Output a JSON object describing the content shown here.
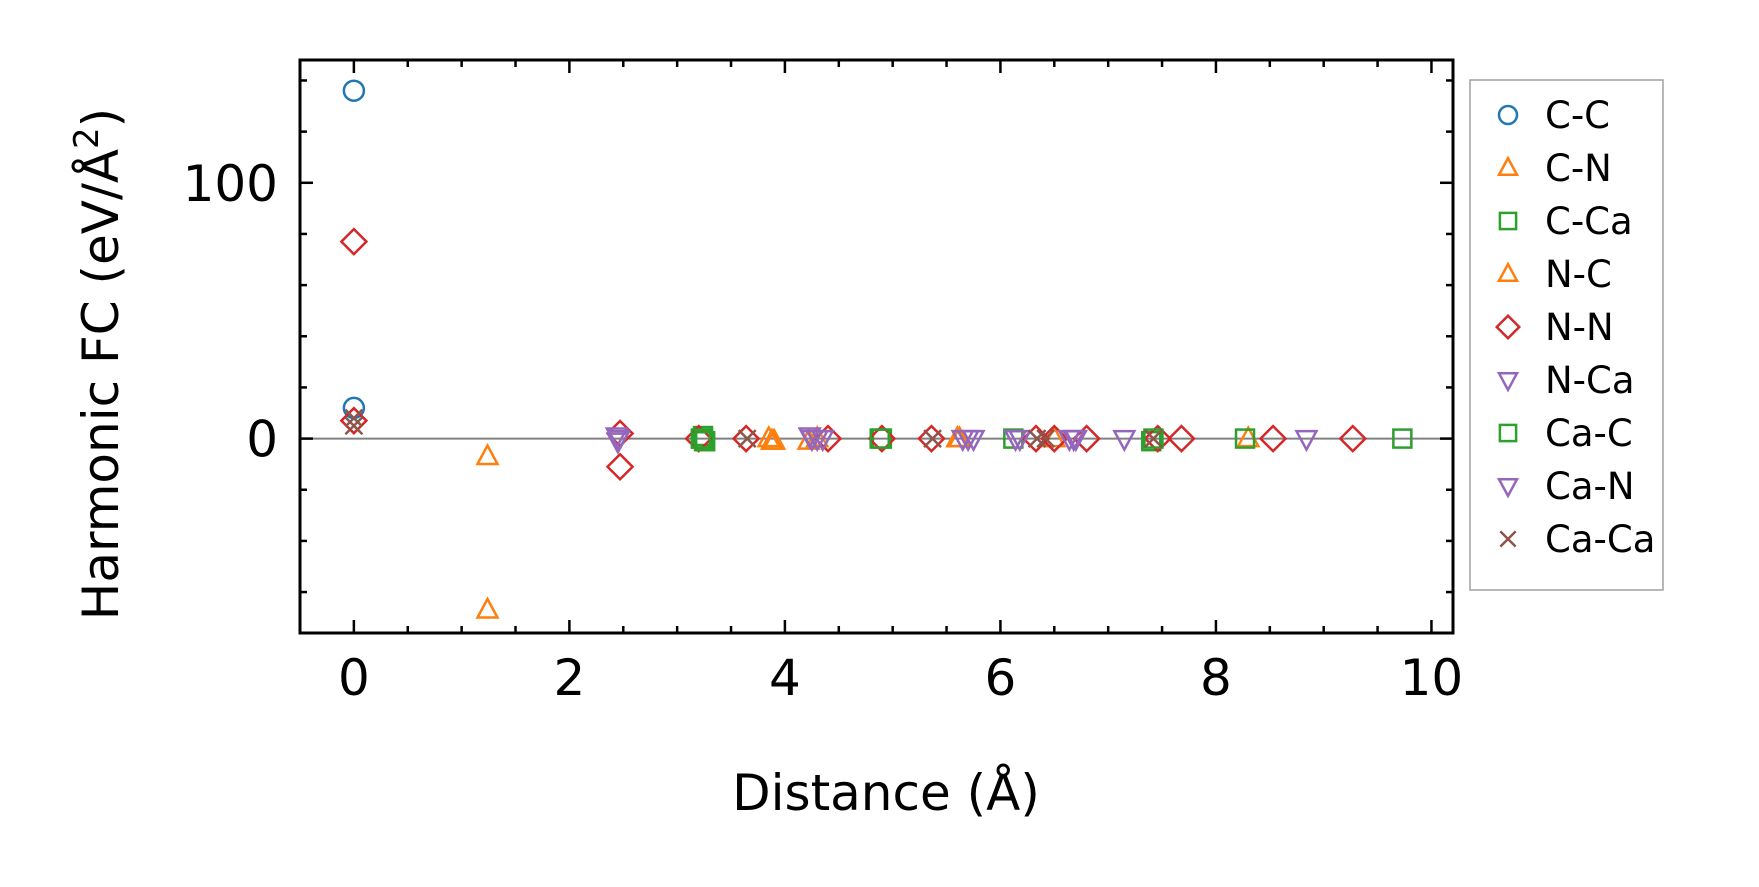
{
  "chart_data": {
    "type": "scatter",
    "title": "",
    "xlabel": "Distance (Å)",
    "ylabel_main": "Harmonic FC (eV/Å",
    "ylabel_sup": "2",
    "ylabel_close": ")",
    "xlim": [
      -0.5,
      10.2
    ],
    "ylim": [
      -76,
      148
    ],
    "x_ticks": [
      0,
      2,
      4,
      6,
      8,
      10
    ],
    "x_tick_labels": [
      "0",
      "2",
      "4",
      "6",
      "8",
      "10"
    ],
    "y_ticks": [
      0,
      100
    ],
    "y_tick_labels": [
      "0",
      "100"
    ],
    "x_minor_step": 0.5,
    "y_minor_step": 20,
    "zero_line": true,
    "grid": false,
    "legend_position": "outside-right",
    "series": [
      {
        "name": "C-C",
        "marker": "circle",
        "color": "#1f77b4",
        "points": [
          [
            0,
            136
          ],
          [
            0,
            12
          ]
        ]
      },
      {
        "name": "C-N",
        "marker": "triangle-up",
        "color": "#ff7f0e",
        "points": [
          [
            1.24,
            -7
          ],
          [
            1.24,
            -67
          ],
          [
            3.85,
            0
          ],
          [
            3.88,
            -1
          ],
          [
            4.22,
            -1
          ],
          [
            5.6,
            0
          ],
          [
            8.3,
            0
          ]
        ]
      },
      {
        "name": "C-Ca",
        "marker": "square",
        "color": "#2ca02c",
        "points": [
          [
            3.23,
            0
          ],
          [
            3.24,
            1
          ],
          [
            3.26,
            -1
          ],
          [
            4.9,
            0
          ],
          [
            6.12,
            0
          ],
          [
            7.4,
            -1
          ],
          [
            8.27,
            0
          ],
          [
            9.73,
            0
          ]
        ]
      },
      {
        "name": "N-C",
        "marker": "triangle-up",
        "color": "#ff7f0e",
        "points": [
          [
            3.9,
            -1
          ],
          [
            4.3,
            0
          ],
          [
            5.62,
            0
          ],
          [
            6.5,
            0
          ]
        ]
      },
      {
        "name": "N-N",
        "marker": "diamond",
        "color": "#d62728",
        "points": [
          [
            0,
            77
          ],
          [
            0,
            7
          ],
          [
            2.47,
            2
          ],
          [
            2.47,
            -11
          ],
          [
            3.2,
            0
          ],
          [
            3.64,
            0
          ],
          [
            4.4,
            0
          ],
          [
            4.9,
            0
          ],
          [
            5.36,
            0
          ],
          [
            6.33,
            0
          ],
          [
            6.5,
            0
          ],
          [
            6.8,
            0
          ],
          [
            7.46,
            0
          ],
          [
            7.68,
            0
          ],
          [
            8.53,
            0
          ],
          [
            9.27,
            0
          ]
        ]
      },
      {
        "name": "N-Ca",
        "marker": "triangle-down",
        "color": "#9467bd",
        "points": [
          [
            2.44,
            1
          ],
          [
            2.45,
            -1
          ],
          [
            4.23,
            1
          ],
          [
            4.3,
            0
          ],
          [
            4.35,
            0
          ],
          [
            5.65,
            0
          ],
          [
            5.75,
            0
          ],
          [
            6.14,
            0
          ],
          [
            6.64,
            0
          ],
          [
            6.7,
            0
          ],
          [
            7.15,
            0
          ]
        ]
      },
      {
        "name": "Ca-C",
        "marker": "square",
        "color": "#2ca02c",
        "points": [
          [
            3.22,
            0
          ],
          [
            3.25,
            -1
          ],
          [
            4.88,
            0
          ],
          [
            7.42,
            0
          ]
        ]
      },
      {
        "name": "Ca-N",
        "marker": "triangle-down",
        "color": "#9467bd",
        "points": [
          [
            2.46,
            0
          ],
          [
            4.25,
            0
          ],
          [
            5.7,
            0
          ],
          [
            6.18,
            0
          ],
          [
            6.68,
            0
          ],
          [
            8.84,
            0
          ]
        ]
      },
      {
        "name": "Ca-Ca",
        "marker": "x",
        "color": "#8c564b",
        "points": [
          [
            0,
            8
          ],
          [
            0,
            5
          ],
          [
            3.65,
            0
          ],
          [
            5.37,
            0
          ],
          [
            6.34,
            0
          ],
          [
            6.42,
            0
          ],
          [
            7.42,
            0
          ]
        ]
      }
    ]
  }
}
